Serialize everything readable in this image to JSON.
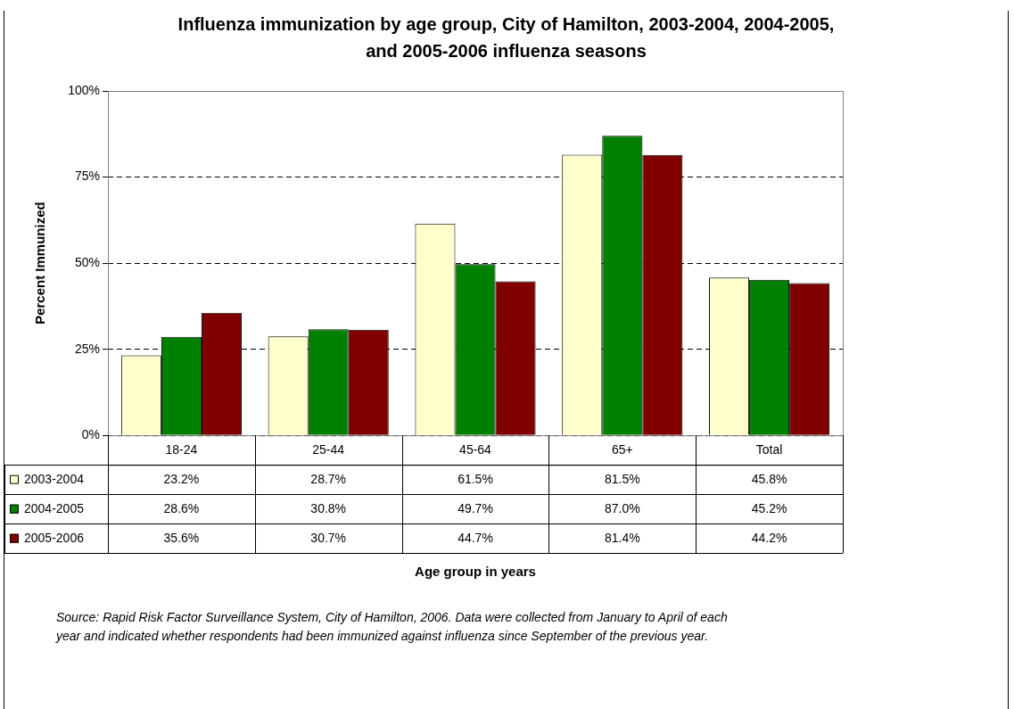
{
  "chart_data": {
    "type": "bar",
    "title": "Influenza immunization by age group, City of Hamilton, 2003-2004, 2004-2005, and 2005-2006 influenza seasons",
    "ylabel": "Percent Immunized",
    "categories": [
      "18-24",
      "25-44",
      "45-64",
      "65+",
      "Total"
    ],
    "series": [
      {
        "name": "2003-2004",
        "color": "#ffffcc",
        "values": [
          23.2,
          28.7,
          61.5,
          81.5,
          45.8
        ],
        "value_labels": [
          "23.2%",
          "28.7%",
          "61.5%",
          "81.5%",
          "45.8%"
        ]
      },
      {
        "name": "2004-2005",
        "color": "#008000",
        "values": [
          28.6,
          30.8,
          49.7,
          87.0,
          45.2
        ],
        "value_labels": [
          "28.6%",
          "30.8%",
          "49.7%",
          "87.0%",
          "45.2%"
        ]
      },
      {
        "name": "2005-2006",
        "color": "#800000",
        "values": [
          35.6,
          30.7,
          44.7,
          81.4,
          44.2
        ],
        "value_labels": [
          "35.6%",
          "30.7%",
          "44.7%",
          "81.4%",
          "44.2%"
        ]
      }
    ],
    "ylim": [
      0,
      100
    ],
    "yticks": [
      {
        "value": 0,
        "label": "0%"
      },
      {
        "value": 25,
        "label": "25%"
      },
      {
        "value": 50,
        "label": "50%"
      },
      {
        "value": 75,
        "label": "75%"
      },
      {
        "value": 100,
        "label": "100%"
      }
    ],
    "grid": "y",
    "legend": "bottom",
    "annotations": [
      "Age group in years",
      "Source: Rapid Risk Factor Surveillance System, City of Hamilton, 2006. Data were collected from January to April of each year and indicated whether respondents had been immunized against influenza since September of the previous year."
    ]
  }
}
